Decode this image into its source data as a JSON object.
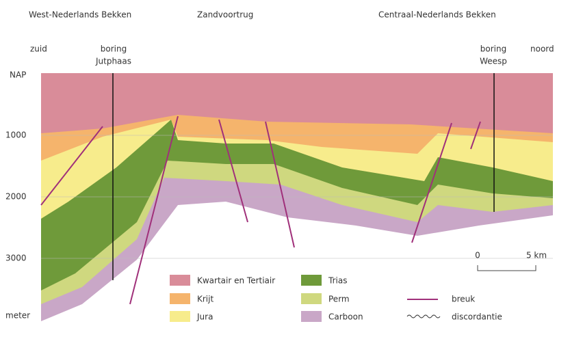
{
  "header": {
    "regions": [
      "West-Nederlands Bekken",
      "Zandvoortrug",
      "Centraal-Nederlands Bekken"
    ]
  },
  "labels": {
    "south": "zuid",
    "north": "noord",
    "boreholes": [
      {
        "line1": "boring",
        "line2": "Jutphaas"
      },
      {
        "line1": "boring",
        "line2": "Weesp"
      }
    ]
  },
  "depth_axis": {
    "top": "NAP",
    "ticks": [
      "1000",
      "2000",
      "3000"
    ],
    "unit": "meter"
  },
  "scale": {
    "start": "0",
    "end": "5 km"
  },
  "legend": {
    "layers": [
      "Kwartair en Tertiair",
      "Krijt",
      "Jura",
      "Trias",
      "Perm",
      "Carboon"
    ],
    "lines": [
      "breuk",
      "discordantie"
    ]
  }
}
